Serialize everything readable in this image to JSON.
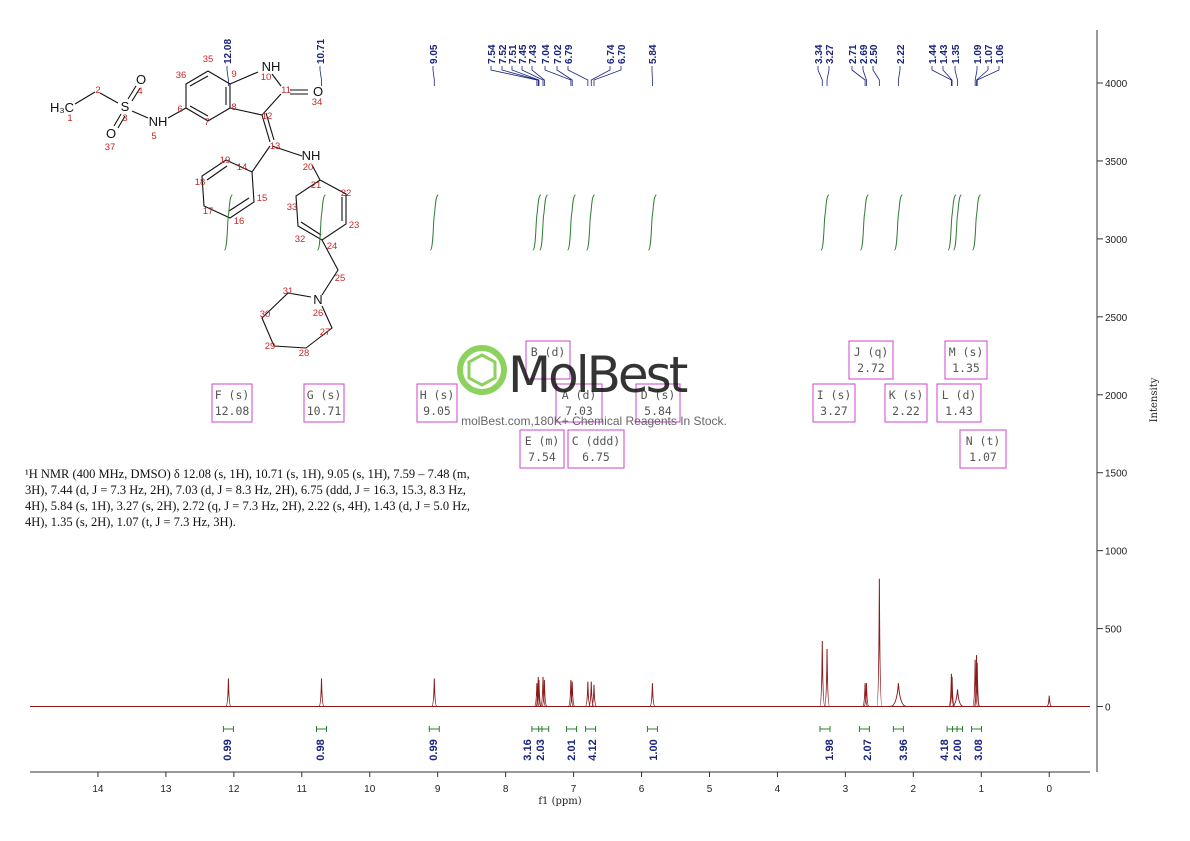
{
  "chart_data": {
    "type": "nmr",
    "x_label": "f1 (ppm)",
    "y_label": "Intensity",
    "xlim": [
      15,
      -0.6
    ],
    "xticks": [
      14,
      13,
      12,
      11,
      10,
      9,
      8,
      7,
      6,
      5,
      4,
      3,
      2,
      1,
      0
    ],
    "ylim": [
      -420,
      4340
    ],
    "yticks": [
      0,
      500,
      1000,
      1500,
      2000,
      2500,
      3000,
      3500,
      4000
    ],
    "color": "#8b1a1a",
    "label_color": "#1a237e",
    "x": [
      12.08,
      10.71,
      9.05,
      7.54,
      7.52,
      7.51,
      7.45,
      7.43,
      7.04,
      7.02,
      6.79,
      6.74,
      6.7,
      5.84,
      3.34,
      3.27,
      2.71,
      2.69,
      2.5,
      2.22,
      1.44,
      1.43,
      1.35,
      1.09,
      1.07,
      1.06,
      0
    ],
    "x_labels": [
      "12.08",
      "10.71",
      "9.05",
      "7.54",
      "7.52",
      "7.51",
      "7.45",
      "7.43",
      "7.04",
      "7.02",
      "6.79",
      "6.74",
      "6.70",
      "5.84",
      "3.34",
      "3.27",
      "2.71",
      "2.69",
      "2.50",
      "2.22",
      "1.44",
      "1.43",
      "1.35",
      "1.09",
      "1.07",
      "1.06",
      null
    ],
    "values": [
      180,
      180,
      180,
      150,
      190,
      170,
      190,
      170,
      170,
      160,
      160,
      160,
      140,
      150,
      420,
      370,
      150,
      150,
      820,
      150,
      210,
      190,
      110,
      300,
      330,
      280,
      70
    ],
    "integrals": {
      "color": "#2e7d32",
      "x": [
        12.08,
        10.71,
        9.05,
        7.54,
        7.44,
        7.03,
        6.75,
        5.84,
        3.3,
        2.72,
        2.22,
        1.43,
        1.35,
        1.07
      ],
      "values": [
        0.99,
        0.98,
        0.99,
        3.16,
        2.03,
        2.01,
        4.12,
        1.0,
        1.98,
        2.07,
        3.96,
        4.18,
        2.0,
        3.08
      ],
      "value_labels": [
        "0.99",
        "0.98",
        "0.99",
        "3.16",
        "2.03",
        "2.01",
        "4.12",
        "1.00",
        "1.98",
        "2.07",
        "3.96",
        "4.18",
        "2.00",
        "3.08"
      ]
    }
  },
  "multiplets": [
    {
      "label": "F (s)",
      "shift": 12.08
    },
    {
      "label": "G (s)",
      "shift": 10.71
    },
    {
      "label": "H (s)",
      "shift": 9.05
    },
    {
      "label": "B (d)"
    },
    {
      "label": "A (d)",
      "shift": 7.03
    },
    {
      "label": "D (s)",
      "shift": 5.84
    },
    {
      "label": "E (m)",
      "shift": 7.54
    },
    {
      "label": "C (ddd)",
      "shift": 6.75
    },
    {
      "label": "J (q)",
      "shift": 2.72
    },
    {
      "label": "M (s)",
      "shift": 1.35
    },
    {
      "label": "I (s)",
      "shift": 3.27
    },
    {
      "label": "K (s)",
      "shift": 2.22
    },
    {
      "label": "L (d)",
      "shift": 1.43
    },
    {
      "label": "N (t)",
      "shift": 1.07
    }
  ],
  "description": "¹H NMR (400 MHz, DMSO) δ 12.08 (s, 1H), 10.71 (s, 1H), 9.05 (s, 1H), 7.59 – 7.48 (m, 3H), 7.44 (d, J = 7.3 Hz, 2H), 7.03 (d, J = 8.3 Hz, 2H), 6.75 (ddd, J = 16.3, 15.3, 8.3 Hz, 4H), 5.84 (s, 1H), 3.27 (s, 2H), 2.72 (q, J = 7.3 Hz, 2H), 2.22 (s, 4H), 1.43 (d, J = 5.0 Hz, 4H), 1.35 (s, 2H), 1.07 (t, J = 7.3 Hz, 3H).",
  "structure": {
    "labels": [
      "H₃C",
      "S",
      "O",
      "O",
      "NH",
      "NH",
      "O",
      "NH",
      "N"
    ],
    "numbers": [
      1,
      2,
      3,
      4,
      5,
      6,
      7,
      8,
      9,
      10,
      11,
      12,
      13,
      14,
      15,
      16,
      17,
      18,
      19,
      20,
      21,
      22,
      23,
      24,
      25,
      26,
      27,
      28,
      29,
      30,
      31,
      32,
      33,
      34,
      35,
      36,
      37
    ]
  },
  "watermark": {
    "name": "MolBest",
    "tagline": "molBest.com,180K+ Chemical Reagents In Stock."
  }
}
